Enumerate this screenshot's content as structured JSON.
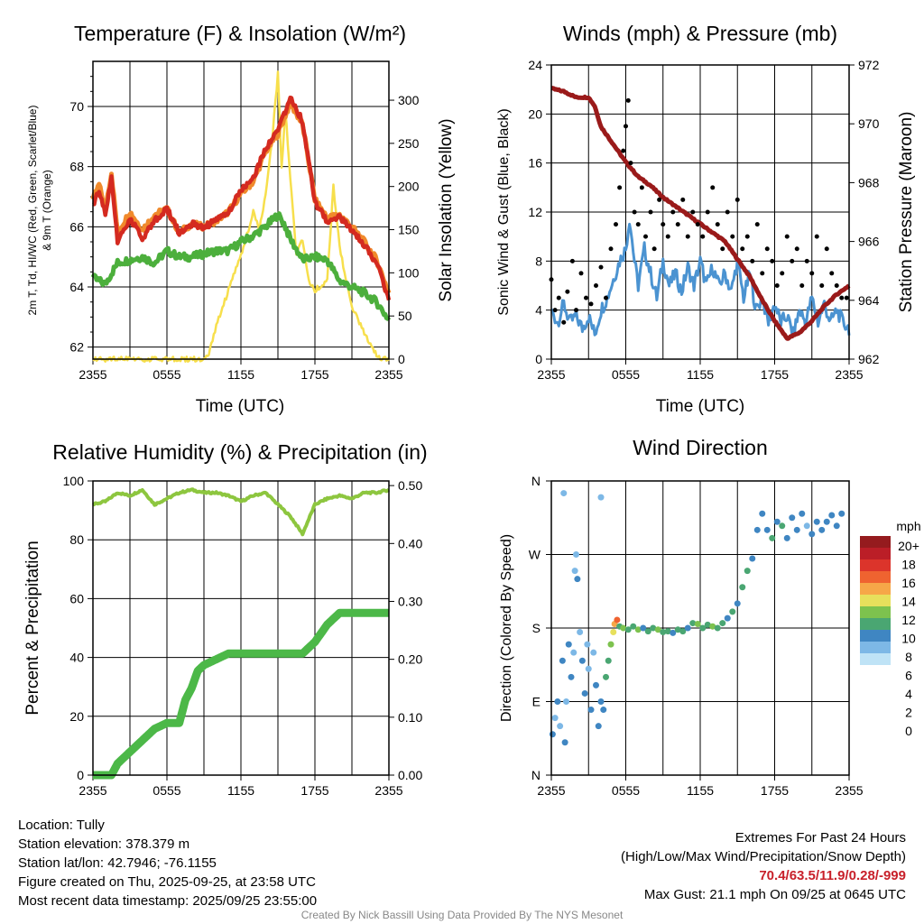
{
  "chart_data": [
    {
      "type": "line",
      "title": "Temperature (F) & Insolation (W/m²)",
      "xlabel": "Time (UTC)",
      "ylabel": "2m T, Td, HI/WC (Red, Green, Scarlet/Blue)",
      "ylabel2": "& 9m T (Orange)",
      "y2label": "Solar Insolation (Yellow)",
      "xticks": [
        "2355",
        "0555",
        "1155",
        "1755",
        "2355"
      ],
      "ylim": [
        61.6,
        71.5
      ],
      "yticks": [
        62,
        64,
        66,
        68,
        70
      ],
      "y2lim": [
        0,
        345
      ],
      "y2ticks": [
        0,
        50,
        100,
        150,
        200,
        250,
        300
      ],
      "series": [
        {
          "name": "9m T",
          "color": "#f08a2c",
          "axis": "left",
          "x": [
            0,
            0.5,
            1,
            1.5,
            2,
            3,
            4,
            5,
            6,
            7,
            8,
            9,
            10,
            11,
            12,
            13,
            14,
            15,
            16,
            17,
            18,
            19,
            20,
            21,
            22,
            23,
            24
          ],
          "values": [
            66.9,
            67.4,
            66.6,
            67.8,
            65.8,
            66.5,
            65.9,
            66.4,
            66.6,
            65.8,
            66.1,
            66.0,
            66.2,
            66.5,
            67.1,
            67.5,
            68.5,
            69.1,
            70.1,
            69.4,
            66.9,
            66.3,
            66.4,
            66.0,
            65.5,
            64.9,
            63.8
          ]
        },
        {
          "name": "2m T",
          "color": "#d42a20",
          "axis": "left",
          "x": [
            0,
            0.5,
            1,
            1.5,
            2,
            3,
            4,
            5,
            6,
            7,
            8,
            9,
            10,
            11,
            12,
            13,
            14,
            15,
            16,
            17,
            18,
            19,
            20,
            21,
            22,
            23,
            24
          ],
          "values": [
            66.7,
            67.2,
            66.4,
            67.6,
            65.5,
            66.3,
            65.6,
            66.2,
            66.6,
            65.8,
            66.1,
            66.0,
            66.2,
            66.5,
            67.2,
            67.6,
            68.6,
            69.2,
            70.3,
            69.5,
            66.8,
            66.2,
            66.3,
            65.9,
            65.4,
            64.8,
            63.6
          ]
        },
        {
          "name": "2m Td",
          "color": "#4caf3c",
          "axis": "left",
          "x": [
            0,
            1,
            2,
            3,
            4,
            5,
            6,
            7,
            8,
            9,
            10,
            11,
            12,
            13,
            14,
            15,
            15.5,
            16,
            17,
            18,
            19,
            20,
            21,
            22,
            23,
            24
          ],
          "values": [
            64.3,
            64.1,
            64.8,
            64.9,
            65.0,
            64.8,
            65.2,
            65.0,
            65.0,
            65.1,
            65.2,
            65.2,
            65.5,
            65.7,
            66.0,
            66.4,
            66.1,
            65.6,
            64.9,
            65.0,
            64.9,
            64.2,
            64.0,
            63.8,
            63.5,
            62.9
          ]
        },
        {
          "name": "Solar Insolation",
          "color": "#f7df4c",
          "axis": "right",
          "x": [
            0,
            9,
            9.5,
            10,
            11,
            12,
            13,
            13.5,
            14,
            14.5,
            15,
            15.3,
            15.6,
            16,
            16.5,
            17,
            17.5,
            18,
            19,
            19.5,
            20,
            21,
            22,
            23,
            23.5,
            24
          ],
          "values": [
            0,
            0,
            10,
            40,
            80,
            120,
            170,
            150,
            190,
            250,
            330,
            220,
            290,
            210,
            120,
            140,
            90,
            80,
            90,
            200,
            130,
            60,
            30,
            5,
            0,
            0
          ]
        }
      ]
    },
    {
      "type": "line",
      "title": "Winds (mph) & Pressure (mb)",
      "xlabel": "Time (UTC)",
      "ylabel": "Sonic Wind & Gust (Blue, Black)",
      "y2label": "Station Pressure (Maroon)",
      "xticks": [
        "2355",
        "0555",
        "1155",
        "1755",
        "2355"
      ],
      "ylim": [
        0,
        24
      ],
      "yticks": [
        0,
        4,
        8,
        12,
        16,
        20,
        24
      ],
      "y2lim": [
        962,
        972
      ],
      "y2ticks": [
        962,
        964,
        966,
        968,
        970,
        972
      ],
      "series": [
        {
          "name": "Sonic Wind",
          "color": "#4b93d1",
          "axis": "left",
          "x": [
            0,
            0.5,
            1,
            1.5,
            2,
            2.5,
            3,
            3.5,
            4,
            4.5,
            5,
            5.5,
            6,
            6.3,
            6.7,
            7,
            7.5,
            8,
            8.5,
            9,
            9.5,
            10,
            10.5,
            11,
            11.5,
            12,
            12.5,
            13,
            13.5,
            14,
            14.5,
            15,
            15.5,
            16,
            16.5,
            17,
            17.5,
            18,
            18.5,
            19,
            19.5,
            20,
            20.5,
            21,
            21.5,
            22,
            22.5,
            23,
            23.5,
            24
          ],
          "values": [
            4,
            3,
            4.5,
            3,
            3.5,
            2.5,
            3.5,
            2,
            4,
            5,
            6.5,
            8,
            9,
            11.5,
            8,
            6,
            9,
            7,
            5,
            8,
            6,
            7,
            5.5,
            7.5,
            6,
            8,
            6,
            7.5,
            6,
            7,
            5.5,
            8,
            5,
            7,
            4,
            5,
            3,
            4.5,
            3,
            3.5,
            2,
            4,
            3,
            5,
            3,
            4.5,
            3,
            4,
            3,
            2.5
          ]
        },
        {
          "name": "Gust",
          "color": "#000000",
          "axis": "left",
          "x": [
            0,
            0.3,
            0.6,
            1,
            1.3,
            1.7,
            2,
            2.4,
            2.8,
            3.2,
            3.6,
            4,
            4.4,
            4.8,
            5.2,
            5.5,
            5.8,
            6,
            6.2,
            6.4,
            6.7,
            7,
            7.3,
            7.6,
            8,
            8.3,
            8.7,
            9,
            9.4,
            9.8,
            10.2,
            10.6,
            11,
            11.4,
            11.8,
            12.2,
            12.6,
            13,
            13.4,
            13.8,
            14.2,
            14.6,
            15,
            15.4,
            15.8,
            16.2,
            16.6,
            17,
            17.4,
            17.8,
            18.2,
            18.6,
            19,
            19.4,
            19.8,
            20.2,
            20.6,
            21,
            21.4,
            21.8,
            22.2,
            22.6,
            23,
            23.4,
            23.8
          ],
          "values": [
            6.5,
            4,
            5,
            3,
            5.5,
            8,
            4,
            7,
            5,
            4.5,
            6,
            7.5,
            5,
            9,
            11,
            14,
            17,
            19,
            21.1,
            16,
            12,
            11,
            14,
            10,
            12,
            9,
            13,
            11,
            10,
            12,
            11,
            13,
            10,
            12,
            11,
            10,
            12,
            14,
            11,
            9,
            12,
            10,
            13,
            9,
            10,
            8,
            11,
            7,
            9,
            8,
            6,
            7,
            10,
            8,
            9,
            6,
            8,
            7,
            10,
            6,
            9,
            7,
            6,
            5,
            5
          ]
        },
        {
          "name": "Station Pressure",
          "color": "#9a1a1a",
          "axis": "right",
          "x": [
            0,
            1,
            2,
            3,
            3.5,
            4,
            5,
            6,
            7,
            8,
            9,
            10,
            11,
            12,
            13,
            14,
            15,
            16,
            17,
            18,
            19,
            20,
            21,
            22,
            23,
            24
          ],
          "values": [
            971.2,
            971.1,
            970.9,
            970.9,
            970.6,
            969.9,
            969.3,
            968.7,
            968.2,
            967.9,
            967.5,
            967.2,
            966.9,
            966.6,
            966.3,
            966.0,
            965.4,
            964.8,
            964.0,
            963.3,
            962.7,
            962.9,
            963.3,
            963.8,
            964.2,
            964.5
          ]
        }
      ]
    },
    {
      "type": "line",
      "title": "Relative Humidity (%) & Precipitation (in)",
      "ylabel": "Percent & Precipitation",
      "xticks": [
        "2355",
        "0555",
        "1155",
        "1755",
        "2355"
      ],
      "ylim": [
        0,
        100
      ],
      "yticks": [
        0,
        20,
        40,
        60,
        80,
        100
      ],
      "y2lim": [
        0,
        0.508
      ],
      "y2ticks": [
        "0.00",
        "0.10",
        "0.20",
        "0.30",
        "0.40",
        "0.50"
      ],
      "series": [
        {
          "name": "Relative Humidity",
          "color": "#8dc63f",
          "axis": "left",
          "x": [
            0,
            1,
            2,
            3,
            4,
            5,
            6,
            7,
            8,
            9,
            10,
            11,
            12,
            13,
            14,
            15,
            16,
            17,
            18,
            19,
            20,
            21,
            22,
            23,
            24
          ],
          "values": [
            92,
            93,
            96,
            95,
            97,
            92,
            94,
            96,
            97,
            96,
            96,
            95,
            93,
            95,
            96,
            92,
            88,
            82,
            92,
            94,
            95,
            94,
            96,
            96,
            97
          ]
        },
        {
          "name": "Precipitation",
          "color": "#4cb848",
          "axis": "right",
          "x": [
            0,
            1.5,
            2,
            2.5,
            3,
            3.5,
            4,
            5,
            6,
            7,
            7.5,
            8,
            8.5,
            9,
            10,
            11,
            16,
            17,
            18,
            19,
            20,
            24
          ],
          "values": [
            0,
            0,
            0.02,
            0.03,
            0.04,
            0.05,
            0.06,
            0.08,
            0.09,
            0.09,
            0.13,
            0.15,
            0.18,
            0.19,
            0.2,
            0.21,
            0.21,
            0.21,
            0.23,
            0.26,
            0.28,
            0.28
          ]
        }
      ]
    },
    {
      "type": "scatter",
      "title": "Wind Direction",
      "ylabel": "Direction (Colored By Speed)",
      "xticks": [
        "2355",
        "0555",
        "1155",
        "1755",
        "2355"
      ],
      "yticks": [
        "N",
        "E",
        "S",
        "W",
        "N"
      ],
      "ylim": [
        0,
        360
      ],
      "colorbar": {
        "title": "mph",
        "labels": [
          "20+",
          "18",
          "16",
          "14",
          "12",
          "10",
          "8",
          "6",
          "4",
          "2",
          "0"
        ],
        "colors": [
          "#951b1e",
          "#bb1e27",
          "#dc342b",
          "#ef6330",
          "#f6a748",
          "#e7e05c",
          "#7dc24e",
          "#4aa672",
          "#3f86c2",
          "#7db8e6",
          "#bfe3f6"
        ]
      },
      "points": [
        [
          0.1,
          50,
          3
        ],
        [
          0.3,
          70,
          2
        ],
        [
          0.5,
          90,
          4
        ],
        [
          0.7,
          60,
          2
        ],
        [
          0.9,
          140,
          3
        ],
        [
          1,
          345,
          2
        ],
        [
          1.1,
          40,
          3
        ],
        [
          1.2,
          90,
          2
        ],
        [
          1.4,
          160,
          3
        ],
        [
          1.6,
          120,
          4
        ],
        [
          1.8,
          150,
          2
        ],
        [
          1.9,
          250,
          2
        ],
        [
          2,
          270,
          1
        ],
        [
          2.1,
          240,
          3
        ],
        [
          2.3,
          175,
          2
        ],
        [
          2.5,
          140,
          4
        ],
        [
          2.7,
          100,
          3
        ],
        [
          2.9,
          160,
          2
        ],
        [
          3,
          130,
          1
        ],
        [
          3.2,
          80,
          3
        ],
        [
          3.4,
          150,
          2
        ],
        [
          3.6,
          110,
          4
        ],
        [
          3.8,
          60,
          3
        ],
        [
          4,
          340,
          1
        ],
        [
          4,
          90,
          4
        ],
        [
          4.2,
          80,
          4
        ],
        [
          4.4,
          120,
          5
        ],
        [
          4.6,
          140,
          6
        ],
        [
          4.8,
          160,
          8
        ],
        [
          5,
          175,
          10
        ],
        [
          5.1,
          185,
          12
        ],
        [
          5.3,
          190,
          13
        ],
        [
          5.5,
          182,
          6
        ],
        [
          5.8,
          180,
          7
        ],
        [
          6.2,
          178,
          5
        ],
        [
          6.6,
          182,
          6
        ],
        [
          7,
          178,
          7
        ],
        [
          7.4,
          180,
          4
        ],
        [
          7.8,
          176,
          5
        ],
        [
          8.2,
          180,
          6
        ],
        [
          8.6,
          178,
          7
        ],
        [
          9,
          175,
          5
        ],
        [
          9.4,
          176,
          6
        ],
        [
          9.8,
          174,
          4
        ],
        [
          10.2,
          178,
          5
        ],
        [
          10.6,
          176,
          6
        ],
        [
          11,
          180,
          4
        ],
        [
          11.4,
          186,
          6
        ],
        [
          11.8,
          185,
          7
        ],
        [
          12.2,
          180,
          5
        ],
        [
          12.6,
          184,
          6
        ],
        [
          13,
          182,
          7
        ],
        [
          13.4,
          180,
          6
        ],
        [
          13.8,
          186,
          5
        ],
        [
          14.2,
          192,
          4
        ],
        [
          14.6,
          200,
          5
        ],
        [
          15,
          210,
          4
        ],
        [
          15.4,
          230,
          5
        ],
        [
          15.8,
          250,
          6
        ],
        [
          16.2,
          265,
          4
        ],
        [
          16.6,
          300,
          3
        ],
        [
          17,
          320,
          4
        ],
        [
          17.4,
          300,
          4
        ],
        [
          17.8,
          290,
          6
        ],
        [
          18.2,
          310,
          3
        ],
        [
          18.6,
          305,
          5
        ],
        [
          19,
          290,
          4
        ],
        [
          19.4,
          315,
          3
        ],
        [
          19.8,
          300,
          4
        ],
        [
          20.2,
          320,
          3
        ],
        [
          20.6,
          305,
          2
        ],
        [
          21,
          295,
          4
        ],
        [
          21.4,
          310,
          3
        ],
        [
          21.8,
          300,
          4
        ],
        [
          22.2,
          310,
          3
        ],
        [
          22.6,
          318,
          4
        ],
        [
          23,
          305,
          3
        ],
        [
          23.4,
          320,
          4
        ]
      ]
    }
  ],
  "footer": {
    "location": "Location: Tully",
    "elevation": "Station elevation: 378.379 m",
    "latlon": "Station lat/lon: 42.7946; -76.1155",
    "created": "Figure created on Thu, 2025-09-25, at 23:58 UTC",
    "recent": "Most recent data timestamp: 2025/09/25 23:55:00",
    "extremes_title": "Extremes For Past 24 Hours",
    "extremes_sub": "(High/Low/Max Wind/Precipitation/Snow Depth)",
    "extremes_values": "70.4/63.5/11.9/0.28/-999",
    "max_gust": "Max Gust: 21.1 mph On 09/25 at 0645 UTC",
    "credit": "Created By Nick Bassill Using Data Provided By The NYS Mesonet"
  }
}
